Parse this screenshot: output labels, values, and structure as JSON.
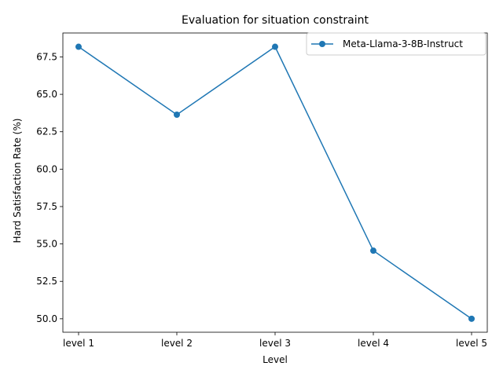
{
  "chart_data": {
    "type": "line",
    "title": "Evaluation for situation constraint",
    "xlabel": "Level",
    "ylabel": "Hard Satisfaction Rate (%)",
    "categories": [
      "level 1",
      "level 2",
      "level 3",
      "level 4",
      "level 5"
    ],
    "series": [
      {
        "name": "Meta-Llama-3-8B-Instruct",
        "values": [
          68.18,
          63.64,
          68.18,
          54.55,
          50.0
        ],
        "color": "#1f77b4"
      }
    ],
    "ylim": [
      49.1,
      69.1
    ],
    "yticks": [
      50.0,
      52.5,
      55.0,
      57.5,
      60.0,
      62.5,
      65.0,
      67.5
    ],
    "ytick_labels": [
      "50.0",
      "52.5",
      "55.0",
      "57.5",
      "60.0",
      "62.5",
      "65.0",
      "67.5"
    ],
    "grid": false,
    "legend_position": "top-right"
  }
}
